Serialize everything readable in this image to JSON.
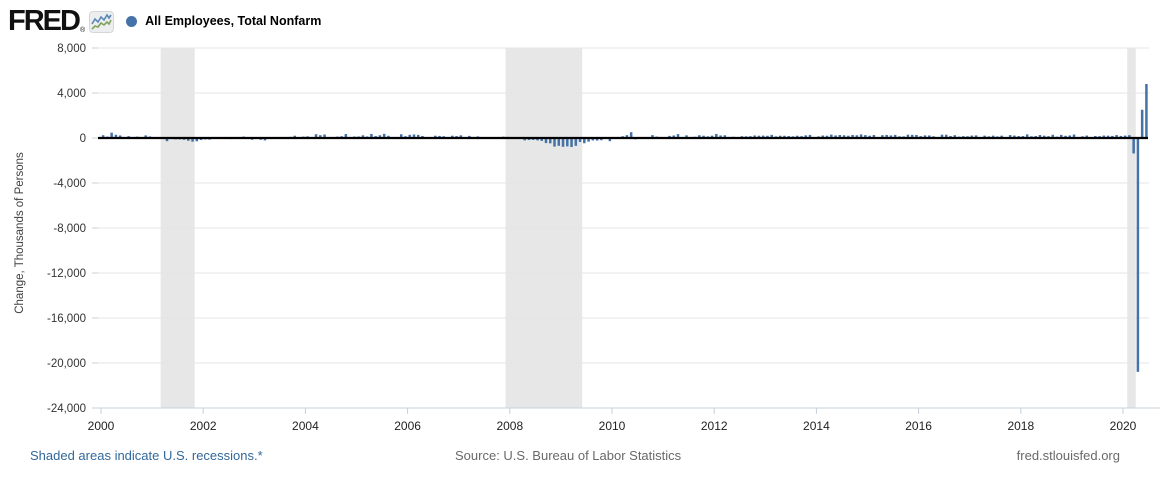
{
  "header": {
    "logo_text": "FRED",
    "logo_registered": "®",
    "logo_icon": "fred-sparkline-icon",
    "legend": {
      "marker_icon": "series-dot-icon",
      "marker_color": "#4572a7",
      "label": "All Employees, Total Nonfarm"
    }
  },
  "chart_data": {
    "type": "bar",
    "title": "All Employees, Total Nonfarm",
    "ylabel": "Change, Thousands of Persons",
    "xlabel": "",
    "ylim": [
      -24000,
      8000
    ],
    "yticks": [
      8000,
      4000,
      0,
      -4000,
      -8000,
      -12000,
      -16000,
      -20000,
      -24000
    ],
    "xticks": [
      "2000",
      "2002",
      "2004",
      "2006",
      "2008",
      "2010",
      "2012",
      "2014",
      "2016",
      "2018",
      "2020"
    ],
    "grid": "horizontal-only",
    "legend_position": "top-left",
    "bar_color": "#4572a7",
    "zero_line_color": "#000000",
    "gridline_color": "#e5e5e5",
    "axis_color": "#c6d0d9",
    "recession_color": "#e7e7e7",
    "recession_bands": [
      {
        "start": "2001-03",
        "end": "2001-11"
      },
      {
        "start": "2007-12",
        "end": "2009-06"
      },
      {
        "start": "2020-02",
        "end": "2020-04"
      }
    ],
    "series": [
      {
        "name": "All Employees, Total Nonfarm",
        "units": "Change, Thousands of Persons",
        "frequency": "monthly",
        "start": "2000-01",
        "end": "2020-06",
        "values": [
          249,
          121,
          472,
          286,
          225,
          -46,
          163,
          3,
          122,
          -11,
          231,
          138,
          -16,
          61,
          -30,
          -281,
          -44,
          -128,
          -125,
          -160,
          -244,
          -325,
          -292,
          -178,
          -132,
          -147,
          -24,
          -85,
          -7,
          45,
          -97,
          -16,
          -55,
          126,
          8,
          -156,
          83,
          -158,
          -212,
          -49,
          -6,
          -2,
          25,
          -42,
          103,
          203,
          18,
          124,
          150,
          43,
          338,
          250,
          310,
          81,
          47,
          121,
          160,
          351,
          64,
          132,
          136,
          240,
          135,
          363,
          169,
          246,
          369,
          195,
          63,
          84,
          334,
          158,
          283,
          316,
          281,
          181,
          24,
          75,
          203,
          186,
          156,
          2,
          205,
          171,
          238,
          88,
          188,
          78,
          144,
          71,
          -33,
          -16,
          85,
          82,
          118,
          97,
          15,
          -86,
          -80,
          -214,
          -182,
          -172,
          -210,
          -259,
          -452,
          -474,
          -765,
          -697,
          -783,
          -743,
          -800,
          -695,
          -354,
          -467,
          -327,
          -216,
          -227,
          -198,
          -6,
          -283,
          18,
          -50,
          156,
          251,
          516,
          -122,
          -61,
          -42,
          -52,
          257,
          123,
          88,
          42,
          188,
          225,
          346,
          73,
          235,
          70,
          107,
          246,
          202,
          146,
          207,
          360,
          226,
          243,
          96,
          110,
          88,
          160,
          150,
          161,
          225,
          203,
          214,
          197,
          280,
          141,
          203,
          199,
          177,
          149,
          202,
          164,
          237,
          274,
          84,
          144,
          222,
          203,
          304,
          229,
          267,
          243,
          203,
          271,
          243,
          321,
          256,
          201,
          266,
          84,
          251,
          273,
          228,
          277,
          150,
          145,
          295,
          280,
          271,
          168,
          233,
          225,
          153,
          43,
          297,
          291,
          176,
          249,
          124,
          164,
          155,
          216,
          232,
          50,
          207,
          145,
          210,
          138,
          208,
          18,
          261,
          216,
          175,
          176,
          324,
          155,
          175,
          268,
          208,
          165,
          286,
          119,
          277,
          196,
          227,
          312,
          56,
          153,
          216,
          62,
          178,
          166,
          219,
          208,
          185,
          261,
          184,
          214,
          251,
          -1373,
          -20787,
          2509,
          4800
        ]
      }
    ]
  },
  "footer": {
    "recession_note": "Shaded areas indicate U.S. recessions.*",
    "source": "Source: U.S. Bureau of Labor Statistics",
    "site": "fred.stlouisfed.org"
  }
}
